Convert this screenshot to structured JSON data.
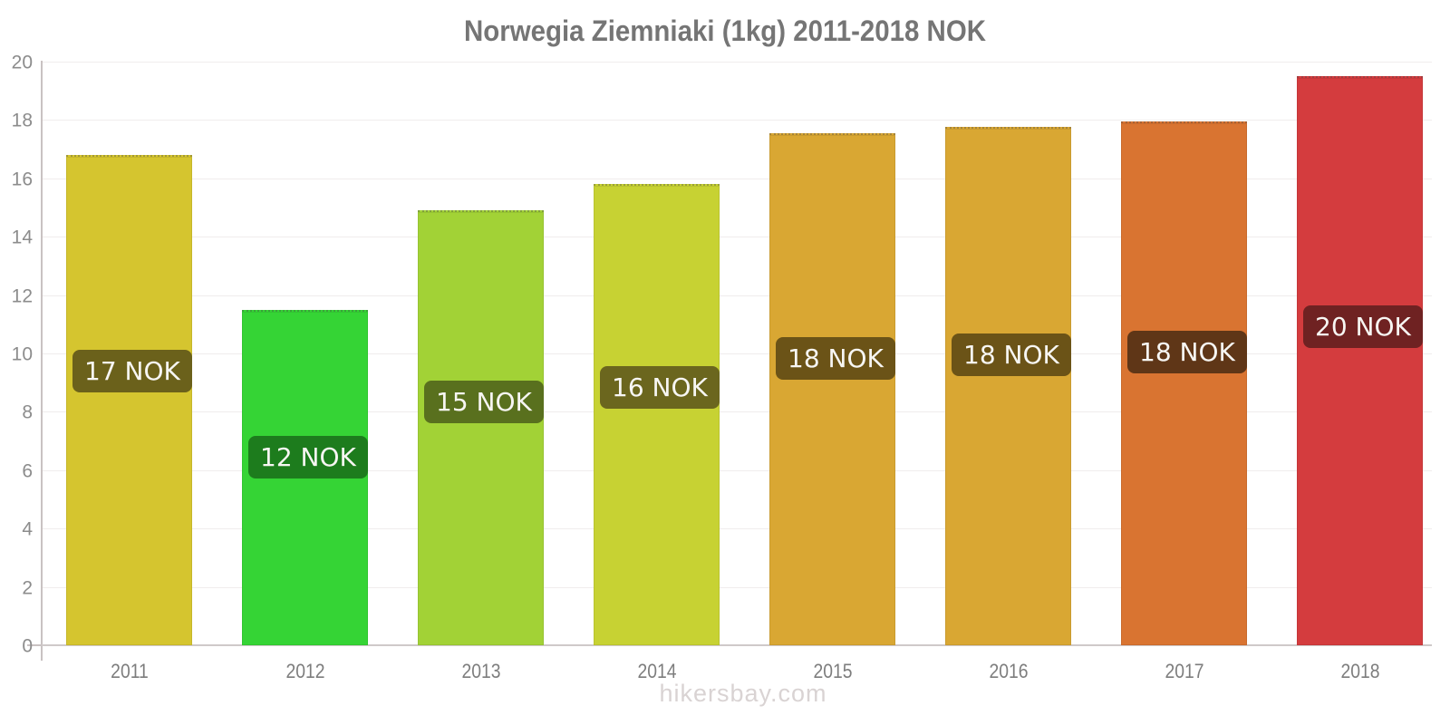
{
  "title": "Norwegia Ziemniaki (1kg) 2011-2018 NOK",
  "watermark": "hikersbay.com",
  "chart_data": {
    "type": "bar",
    "title": "Norwegia Ziemniaki (1kg) 2011-2018 NOK",
    "categories": [
      "2011",
      "2012",
      "2013",
      "2014",
      "2015",
      "2016",
      "2017",
      "2018"
    ],
    "values": [
      16.8,
      11.5,
      14.9,
      15.8,
      17.55,
      17.75,
      17.95,
      19.5
    ],
    "bar_labels": [
      "17 NOK",
      "12 NOK",
      "15 NOK",
      "16 NOK",
      "18 NOK",
      "18 NOK",
      "18 NOK",
      "20 NOK"
    ],
    "bar_colors": [
      "#d5c52f",
      "#35d435",
      "#a2d236",
      "#c7d233",
      "#d9a733",
      "#d9a733",
      "#d97431",
      "#d43c3e"
    ],
    "badge_colors": [
      "#6b611b",
      "#1d7c1d",
      "#59701e",
      "#6b661e",
      "#6b5317",
      "#6b5317",
      "#5f3617",
      "#6f2222"
    ],
    "xlabel": "",
    "ylabel": "",
    "ylim": [
      0,
      20
    ],
    "yticks": [
      0,
      2,
      4,
      6,
      8,
      10,
      12,
      14,
      16,
      18,
      20
    ],
    "grid": true,
    "legend": "none",
    "currency": "NOK"
  },
  "colors": {
    "title_text": "#757575",
    "axis_line": "#c9c2c2",
    "grid_line": "#f0eded",
    "y_tick_text": "#8c8c8c",
    "x_tick_text": "#7d7d7d",
    "badge_text": "#f7f6f3",
    "watermark_text": "#d9d3d3",
    "background": "#ffffff"
  }
}
